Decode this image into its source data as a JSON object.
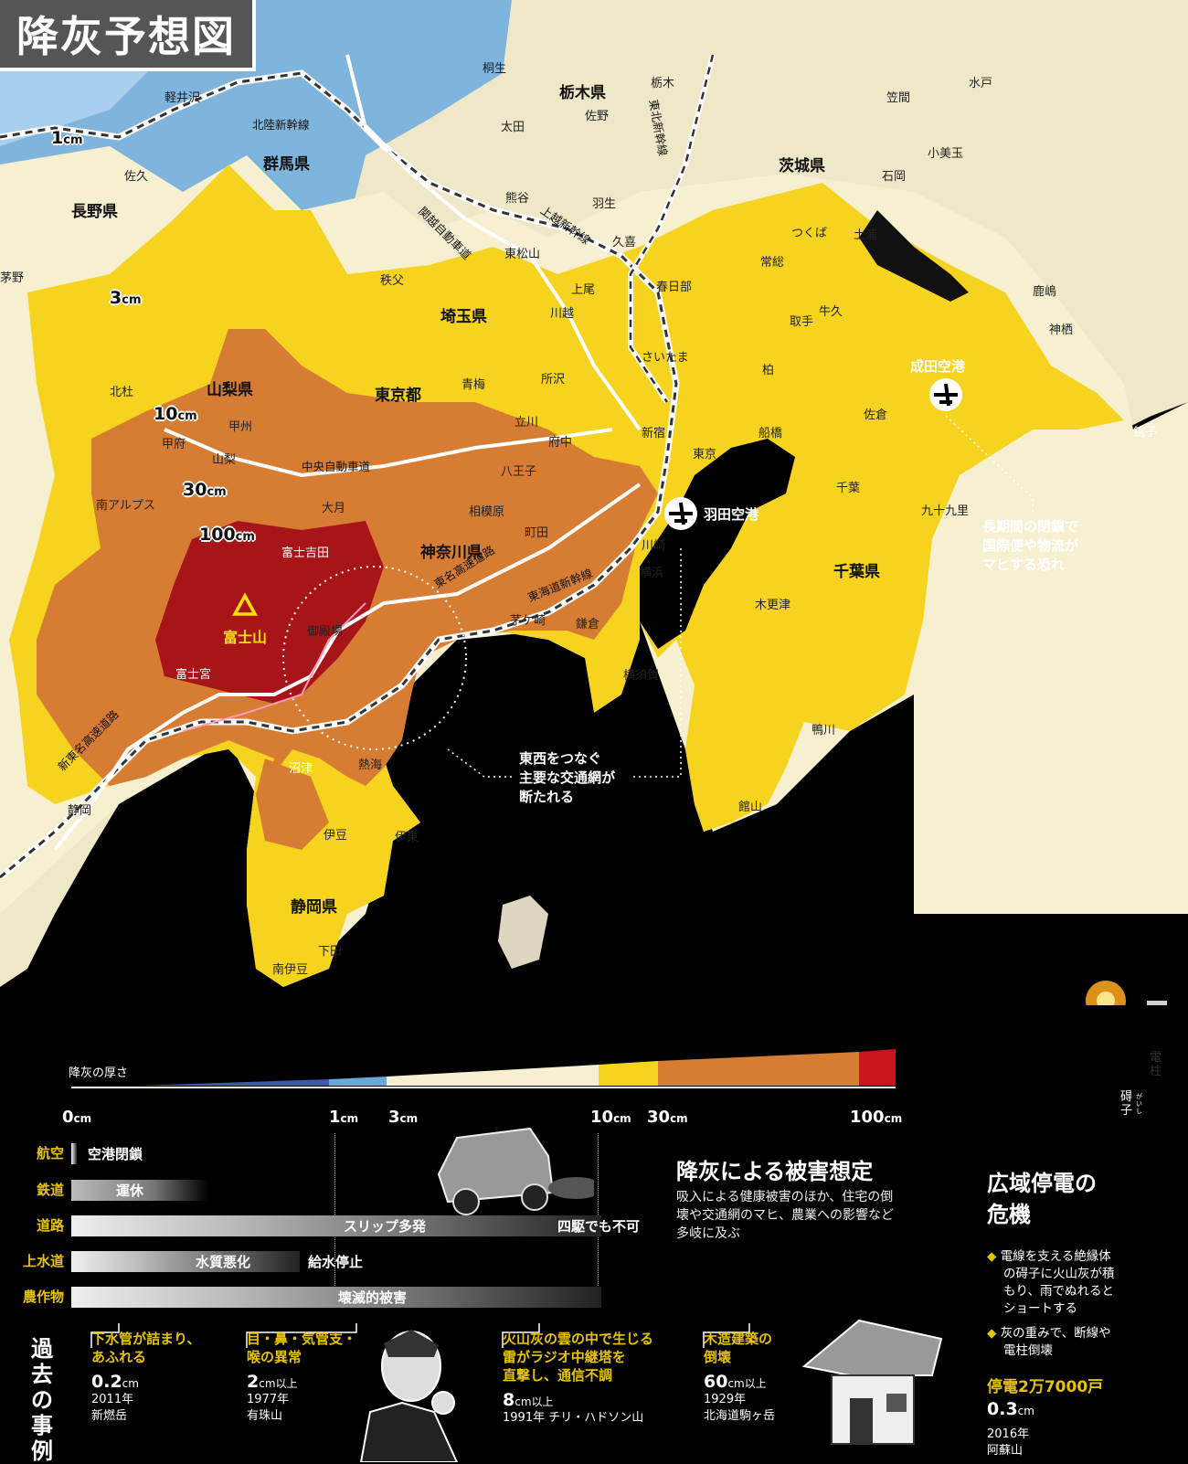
{
  "title": "降灰予想図",
  "map": {
    "prefectures": [
      "栃木県",
      "群馬県",
      "茨城県",
      "長野県",
      "埼玉県",
      "山梨県",
      "東京都",
      "神奈川県",
      "千葉県",
      "静岡県"
    ],
    "isopachs": [
      "1",
      "3",
      "10",
      "30",
      "100"
    ],
    "unit": "cm",
    "cities": [
      "桐生",
      "栃木",
      "水戸",
      "軽井沢",
      "笠間",
      "佐野",
      "太田",
      "小美玉",
      "佐久",
      "石岡",
      "熊谷",
      "羽生",
      "つくば",
      "土浦",
      "久喜",
      "東松山",
      "秩父",
      "常総",
      "上尾",
      "春日部",
      "鹿嶋",
      "川越",
      "牛久",
      "取手",
      "神栖",
      "さいたま",
      "青梅",
      "所沢",
      "柏",
      "北杜",
      "立川",
      "佐倉",
      "甲州",
      "新宿",
      "船橋",
      "甲府",
      "府中",
      "銚子",
      "山梨",
      "東京",
      "八王子",
      "千葉",
      "南アルプス",
      "大月",
      "九十九里",
      "相模原",
      "町田",
      "富士吉田",
      "川崎",
      "横浜",
      "木更津",
      "御殿場",
      "茅ケ崎",
      "鎌倉",
      "富士宮",
      "横須賀",
      "鴨川",
      "沼津",
      "熱海",
      "静岡",
      "館山",
      "伊豆",
      "伊東",
      "下田",
      "南伊豆",
      "茅野"
    ],
    "volcano": "富士山",
    "roads": [
      "北陸新幹線",
      "関越自動車道",
      "上越新幹線",
      "東北新幹線",
      "中央自動車道",
      "東名高速道路",
      "東海道新幹線",
      "新東名高速道路"
    ],
    "airports": [
      "成田空港",
      "羽田空港"
    ],
    "callout_narita": [
      "長期間の閉鎖で",
      "国際便や物流が",
      "マヒする恐れ"
    ],
    "callout_transport": [
      "東西をつなぐ",
      "主要な交通網が",
      "断たれる"
    ]
  },
  "legend": {
    "scale_title": "降灰の厚さ",
    "scale_ticks": [
      {
        "value": "0",
        "unit": "cm"
      },
      {
        "value": "1",
        "unit": "cm"
      },
      {
        "value": "3",
        "unit": "cm"
      },
      {
        "value": "10",
        "unit": "cm"
      },
      {
        "value": "30",
        "unit": "cm"
      },
      {
        "value": "100",
        "unit": "cm"
      }
    ],
    "colors": [
      "#3a5aa8",
      "#6aa8d8",
      "#f7f0d0",
      "#f5d31e",
      "#d77c33",
      "#c8141b"
    ],
    "impacts": [
      {
        "category": "航空",
        "labels": [
          "空港閉鎖"
        ]
      },
      {
        "category": "鉄道",
        "labels": [
          "運休"
        ]
      },
      {
        "category": "道路",
        "labels": [
          "スリップ多発",
          "四駆でも不可"
        ]
      },
      {
        "category": "上水道",
        "labels": [
          "水質悪化",
          "給水停止"
        ]
      },
      {
        "category": "農作物",
        "labels": [
          "壊滅的被害"
        ]
      }
    ]
  },
  "damage": {
    "heading": "降灰による被害想定",
    "lines": [
      "吸入による健康被害のほか、住宅の倒",
      "壊や交通網のマヒ、農業への影響など",
      "多岐に及ぶ"
    ]
  },
  "past": {
    "label": "過去の事例",
    "cases": [
      {
        "title": [
          "下水管が詰まり、",
          "あふれる"
        ],
        "value": "0.2",
        "unit": "cm",
        "suffix": "",
        "year": "2011年",
        "place": "新燃岳"
      },
      {
        "title": [
          "目・鼻・気管支・",
          "喉の異常"
        ],
        "value": "2",
        "unit": "cm",
        "suffix": "以上",
        "year": "1977年",
        "place": "有珠山"
      },
      {
        "title": [
          "火山灰の雲の中で生じる",
          "雷がラジオ中継塔を",
          "直撃し、通信不調"
        ],
        "value": "8",
        "unit": "cm",
        "suffix": "以上",
        "year": "1991年",
        "place": "チリ・ハドソン山"
      },
      {
        "title": [
          "木造建築の",
          "倒壊"
        ],
        "value": "60",
        "unit": "cm",
        "suffix": "以上",
        "year": "1929年",
        "place": "北海道駒ヶ岳"
      }
    ]
  },
  "blackout": {
    "heading": [
      "広域停電の",
      "危機"
    ],
    "pole_label": "電柱",
    "insulator_label": "碍子",
    "insulator_reading": "がいし",
    "bullets": [
      [
        "電線を支える絶縁体",
        "の碍子に火山灰が積",
        "もり、雨でぬれると",
        "ショートする"
      ],
      [
        "灰の重みで、断線や",
        "電柱倒壊"
      ]
    ],
    "stat": "停電2万7000戸",
    "value": "0.3",
    "unit": "cm",
    "year": "2016年",
    "place": "阿蘇山"
  }
}
